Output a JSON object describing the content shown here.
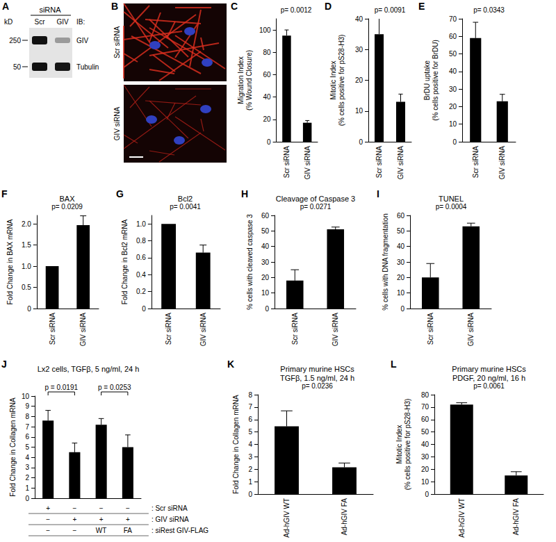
{
  "figure": {
    "panel_a": {
      "panel": "A",
      "header": "siRNA",
      "lanes": [
        "Scr",
        "GIV"
      ],
      "ib_label": "IB:",
      "kd_label": "kD",
      "rows": [
        {
          "kd": "250",
          "label": "GIV"
        },
        {
          "kd": "50",
          "label": "Tubulin"
        }
      ]
    },
    "panel_b": {
      "panel": "B",
      "images": [
        "Scr siRNA",
        "GIV siRNA"
      ]
    }
  },
  "chart_data": [
    {
      "panel": "C",
      "type": "bar",
      "ylabel": "Migration Index\n(% Wound Closure)",
      "categories": [
        "Scr siRNA",
        "GIV siRNA"
      ],
      "values": [
        95,
        17
      ],
      "errors": [
        5,
        2
      ],
      "color": "#000000",
      "ylim": [
        0,
        110
      ],
      "yticks": [
        0,
        20,
        40,
        60,
        80,
        100
      ],
      "grid": false,
      "annotations": [
        {
          "text": "p= 0.0012"
        }
      ]
    },
    {
      "panel": "D",
      "type": "bar",
      "ylabel": "Mitotic Index\n(% cells positive for pS28-H3)",
      "categories": [
        "Scr siRNA",
        "GIV siRNA"
      ],
      "values": [
        35,
        13
      ],
      "errors": [
        6,
        2.5
      ],
      "color": "#000000",
      "ylim": [
        0,
        40
      ],
      "yticks": [
        0,
        10,
        20,
        30,
        40
      ],
      "grid": false,
      "annotations": [
        {
          "text": "p= 0.0091"
        }
      ]
    },
    {
      "panel": "E",
      "type": "bar",
      "ylabel": "BrDU uptake\n(% cells positive for BrDU)",
      "categories": [
        "Scr siRNA",
        "GIV siRNA"
      ],
      "values": [
        59,
        23
      ],
      "errors": [
        9,
        4
      ],
      "color": "#000000",
      "ylim": [
        0,
        70
      ],
      "yticks": [
        0,
        10,
        20,
        30,
        40,
        50,
        60,
        70
      ],
      "grid": false,
      "annotations": [
        {
          "text": "p= 0.0343"
        }
      ]
    },
    {
      "panel": "F",
      "type": "bar",
      "title": "BAX",
      "ylabel": "Fold Change in BAX mRNA",
      "categories": [
        "Scr siRNA",
        "GIV siRNA"
      ],
      "values": [
        1.0,
        1.97
      ],
      "errors": [
        null,
        0.22
      ],
      "color": "#000000",
      "ylim": [
        0,
        2.2
      ],
      "yticks": [
        0,
        0.5,
        {
          "value": 1,
          "label": "1.0"
        },
        1.5,
        {
          "value": 2,
          "label": "2.0"
        }
      ],
      "grid": false,
      "annotations": [
        {
          "text": "p= 0.0209"
        }
      ]
    },
    {
      "panel": "G",
      "type": "bar",
      "title": "Bcl2",
      "ylabel": "Fold Change in Bcl2 mRNA",
      "categories": [
        "Scr siRNA",
        "GIV siRNA"
      ],
      "values": [
        1.0,
        0.66
      ],
      "errors": [
        null,
        0.09
      ],
      "color": "#000000",
      "ylim": [
        0,
        1.1
      ],
      "yticks": [
        0,
        0.2,
        0.4,
        0.6,
        0.8,
        {
          "value": 1,
          "label": "1.0"
        }
      ],
      "grid": false,
      "annotations": [
        {
          "text": "p= 0.0041"
        }
      ]
    },
    {
      "panel": "H",
      "type": "bar",
      "title": "Cleavage of Caspase 3",
      "ylabel": "% cells with cleaved caspase 3",
      "categories": [
        "Scr siRNA",
        "GIV siRNA"
      ],
      "values": [
        18,
        51
      ],
      "errors": [
        7,
        1.5
      ],
      "color": "#000000",
      "ylim": [
        0,
        60
      ],
      "yticks": [
        0,
        10,
        20,
        30,
        40,
        50,
        60
      ],
      "grid": false,
      "annotations": [
        {
          "text": "p= 0.0271"
        }
      ]
    },
    {
      "panel": "I",
      "type": "bar",
      "title": "TUNEL",
      "ylabel": "% cells with DNA fragmentation",
      "categories": [
        "Scr siRNA",
        "GIV siRNA"
      ],
      "values": [
        20,
        53
      ],
      "errors": [
        9,
        2
      ],
      "color": "#000000",
      "ylim": [
        0,
        60
      ],
      "yticks": [
        0,
        10,
        20,
        30,
        40,
        50,
        60
      ],
      "grid": false,
      "annotations": [
        {
          "text": "p= 0.0004"
        }
      ]
    },
    {
      "panel": "J",
      "type": "bar",
      "title": "Lx2 cells, TGFβ, 5 ng/ml, 24 h",
      "ylabel": "Fold Change in Collagen mRNA",
      "categories": [
        null,
        null,
        null,
        null
      ],
      "values": [
        7.6,
        4.5,
        7.2,
        5.0
      ],
      "errors": [
        1.0,
        0.9,
        0.6,
        1.2
      ],
      "color": "#000000",
      "ylim": [
        0,
        10
      ],
      "yticks": [
        0,
        1,
        2,
        3,
        4,
        5,
        6,
        7,
        8,
        9,
        10
      ],
      "grid": false,
      "annotations": [
        {
          "text": "p = 0.0191",
          "bars": [
            0,
            1
          ]
        },
        {
          "text": "p = 0.0253",
          "bars": [
            2,
            3
          ]
        }
      ],
      "condition_table": {
        "rows": [
          {
            "label": ": Scr siRNA",
            "cells": [
              "+",
              "−",
              "−",
              "−"
            ]
          },
          {
            "label": ": GIV siRNA",
            "cells": [
              "−",
              "+",
              "+",
              "+"
            ]
          },
          {
            "label": ": siRest GIV-FLAG",
            "cells": [
              "−",
              "−",
              "WT",
              "FA"
            ]
          }
        ]
      }
    },
    {
      "panel": "K",
      "type": "bar",
      "title": "Primary murine HSCs\nTGFβ, 1.5 ng/ml, 24 h",
      "ylabel": "Fold Change in Collagen mRNA",
      "categories": [
        "Ad-hGIV WT",
        "Ad-hGIV FA"
      ],
      "values": [
        5.45,
        2.15
      ],
      "errors": [
        1.25,
        0.35
      ],
      "color": "#000000",
      "ylim": [
        0,
        8
      ],
      "yticks": [
        0,
        1,
        2,
        3,
        4,
        5,
        6,
        7,
        8
      ],
      "grid": false,
      "annotations": [
        {
          "text": "p= 0.0236"
        }
      ]
    },
    {
      "panel": "L",
      "type": "bar",
      "title": "Primary murine HSCs\nPDGF, 20 ng/ml, 16 h",
      "ylabel": "Mitotic Index\n(% cells positive for pS28-H3)",
      "categories": [
        "Ad-hGIV WT",
        "Ad-hGIV FA"
      ],
      "values": [
        72,
        15
      ],
      "errors": [
        1.5,
        3
      ],
      "color": "#000000",
      "ylim": [
        0,
        80
      ],
      "yticks": [
        0,
        10,
        20,
        30,
        40,
        50,
        60,
        70,
        80
      ],
      "grid": false,
      "annotations": [
        {
          "text": "p= 0.0061"
        }
      ]
    }
  ]
}
